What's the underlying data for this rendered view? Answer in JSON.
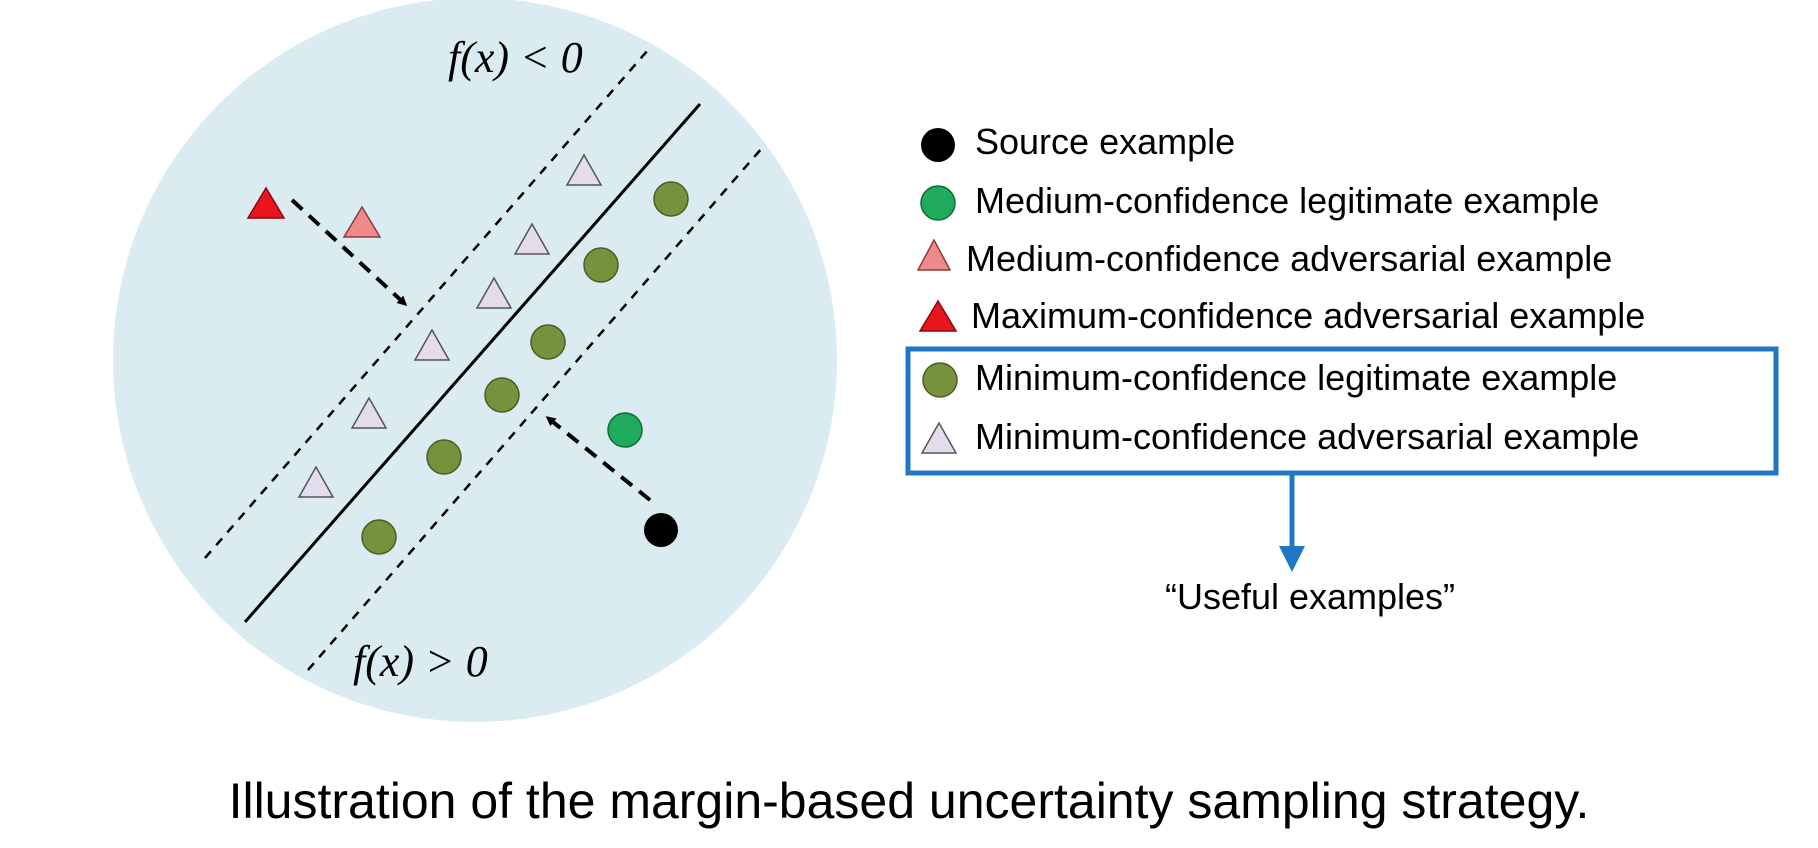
{
  "diagram": {
    "region_labels": {
      "negative": "f(x) < 0",
      "positive": "f(x) > 0"
    },
    "colors": {
      "background_circle": "#daebf2",
      "source": "#000000",
      "medium_legit": "#1fab5b",
      "min_legit": "#77923d",
      "medium_adv": "#f08a8a",
      "max_adv": "#e8141e",
      "min_adv": "#e2dcec",
      "highlight_box": "#1f78c1"
    }
  },
  "legend": {
    "items": [
      {
        "shape": "circle",
        "color": "#000000",
        "label": "Source example"
      },
      {
        "shape": "circle",
        "color": "#1fab5b",
        "label": "Medium-confidence legitimate example"
      },
      {
        "shape": "triangle",
        "color": "#f08a8a",
        "label": "Medium-confidence adversarial example"
      },
      {
        "shape": "triangle",
        "color": "#e8141e",
        "label": "Maximum-confidence adversarial example"
      },
      {
        "shape": "circle",
        "color": "#77923d",
        "label": "Minimum-confidence legitimate example"
      },
      {
        "shape": "triangle",
        "color": "#e2dcec",
        "label": "Minimum-confidence adversarial example"
      }
    ],
    "useful_label": "“Useful examples”"
  },
  "caption": "Illustration of the margin-based uncertainty sampling strategy."
}
